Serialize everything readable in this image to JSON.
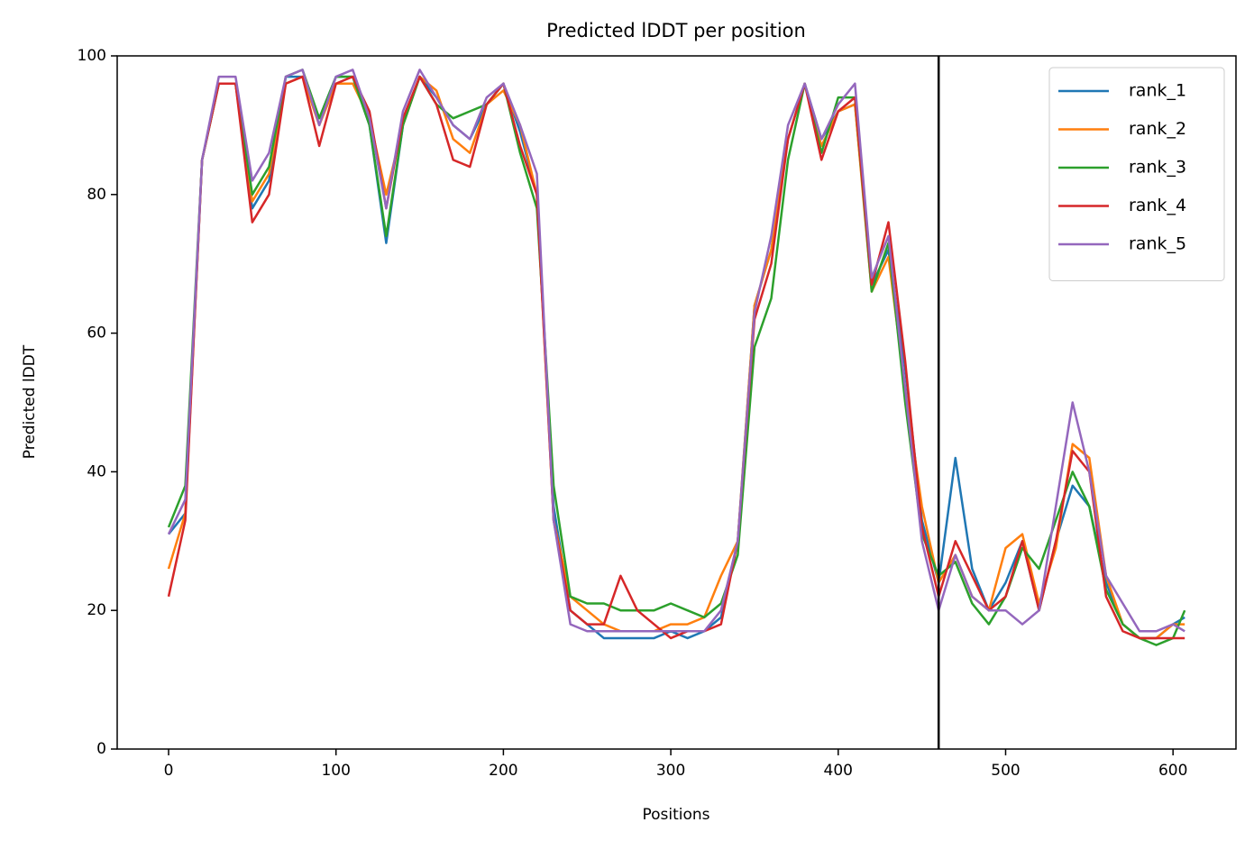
{
  "chart_data": {
    "type": "line",
    "title": "Predicted lDDT per position",
    "xlabel": "Positions",
    "ylabel": "Predicted lDDT",
    "x": [
      0,
      10,
      20,
      30,
      40,
      50,
      60,
      70,
      80,
      90,
      100,
      110,
      120,
      130,
      140,
      150,
      160,
      170,
      180,
      190,
      200,
      210,
      220,
      230,
      240,
      250,
      260,
      270,
      280,
      290,
      300,
      310,
      320,
      330,
      340,
      350,
      360,
      370,
      380,
      390,
      400,
      410,
      420,
      430,
      440,
      450,
      460,
      470,
      480,
      490,
      500,
      510,
      520,
      530,
      540,
      550,
      560,
      570,
      580,
      590,
      600,
      607
    ],
    "series": [
      {
        "name": "rank_1",
        "color": "#1f77b4",
        "values": [
          31,
          34,
          85,
          96,
          96,
          78,
          82,
          97,
          97,
          91,
          97,
          97,
          90,
          73,
          90,
          97,
          94,
          90,
          88,
          93,
          96,
          89,
          80,
          35,
          20,
          18,
          16,
          16,
          16,
          16,
          17,
          16,
          17,
          19,
          30,
          64,
          72,
          88,
          96,
          88,
          92,
          93,
          67,
          72,
          55,
          33,
          24,
          42,
          26,
          20,
          24,
          30,
          20,
          30,
          38,
          35,
          24,
          18,
          16,
          16,
          18,
          19
        ]
      },
      {
        "name": "rank_2",
        "color": "#ff7f0e",
        "values": [
          26,
          34,
          85,
          96,
          96,
          79,
          83,
          96,
          97,
          90,
          96,
          96,
          91,
          80,
          90,
          97,
          95,
          88,
          86,
          93,
          95,
          90,
          80,
          33,
          22,
          20,
          18,
          17,
          17,
          17,
          18,
          18,
          19,
          25,
          30,
          64,
          72,
          88,
          96,
          87,
          92,
          93,
          66,
          71,
          52,
          35,
          24,
          28,
          22,
          20,
          29,
          31,
          21,
          29,
          44,
          42,
          25,
          18,
          16,
          16,
          18,
          18
        ]
      },
      {
        "name": "rank_3",
        "color": "#2ca02c",
        "values": [
          32,
          38,
          85,
          96,
          96,
          80,
          84,
          97,
          98,
          91,
          97,
          97,
          90,
          74,
          90,
          97,
          93,
          91,
          92,
          93,
          96,
          86,
          78,
          38,
          22,
          21,
          21,
          20,
          20,
          20,
          21,
          20,
          19,
          21,
          28,
          58,
          65,
          85,
          96,
          86,
          94,
          94,
          66,
          73,
          50,
          31,
          25,
          27,
          21,
          18,
          22,
          29,
          26,
          33,
          40,
          35,
          23,
          18,
          16,
          15,
          16,
          20
        ]
      },
      {
        "name": "rank_4",
        "color": "#d62728",
        "values": [
          22,
          33,
          85,
          96,
          96,
          76,
          80,
          96,
          97,
          87,
          96,
          97,
          92,
          78,
          91,
          97,
          93,
          85,
          84,
          93,
          96,
          87,
          80,
          33,
          20,
          18,
          18,
          25,
          20,
          18,
          16,
          17,
          17,
          18,
          30,
          62,
          70,
          88,
          96,
          85,
          92,
          94,
          67,
          76,
          56,
          32,
          22,
          30,
          25,
          20,
          22,
          30,
          20,
          30,
          43,
          40,
          22,
          17,
          16,
          16,
          16,
          16
        ]
      },
      {
        "name": "rank_5",
        "color": "#9467bd",
        "values": [
          31,
          36,
          85,
          97,
          97,
          82,
          86,
          97,
          98,
          90,
          97,
          98,
          91,
          78,
          92,
          98,
          94,
          90,
          88,
          94,
          96,
          90,
          83,
          33,
          18,
          17,
          17,
          17,
          17,
          17,
          17,
          17,
          17,
          20,
          30,
          63,
          74,
          90,
          96,
          88,
          93,
          96,
          68,
          74,
          52,
          30,
          20,
          28,
          22,
          20,
          20,
          18,
          20,
          35,
          50,
          40,
          25,
          21,
          17,
          17,
          18,
          17
        ]
      }
    ],
    "vline": 460,
    "xlim": [
      -30.7,
      637.6
    ],
    "ylim": [
      0,
      100
    ],
    "xticks": [
      0,
      100,
      200,
      300,
      400,
      500,
      600
    ],
    "yticks": [
      0,
      20,
      40,
      60,
      80,
      100
    ],
    "legend": "upper right"
  }
}
